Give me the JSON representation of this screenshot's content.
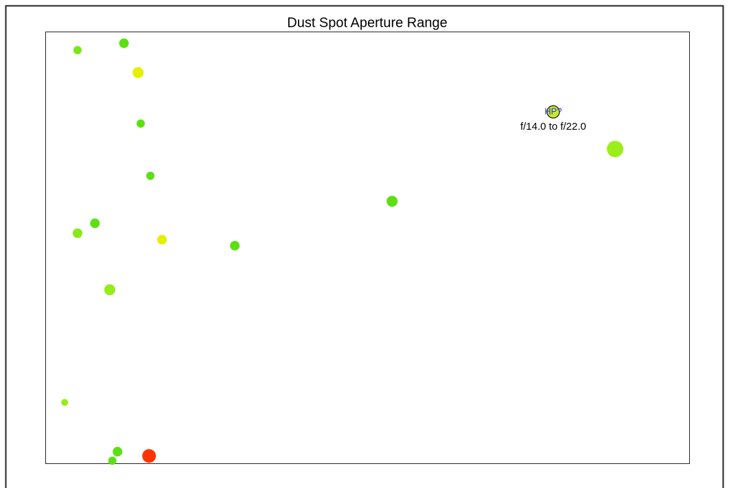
{
  "chart_data": {
    "type": "scatter",
    "title": "Dust Spot Aperture Range",
    "xlim": [
      0,
      100
    ],
    "ylim": [
      0,
      100
    ],
    "x": [
      5.0,
      12.2,
      14.4,
      14.8,
      16.3,
      53.8,
      88.4,
      7.7,
      5.0,
      18.1,
      29.4,
      10.0,
      3.0,
      11.2,
      10.4,
      16.1
    ],
    "y": [
      95.7,
      97.3,
      90.5,
      78.7,
      66.6,
      60.7,
      72.8,
      55.6,
      53.3,
      51.8,
      50.4,
      40.2,
      14.1,
      2.7,
      0.6,
      1.7
    ],
    "sizes": [
      6,
      7,
      8,
      6,
      6,
      8,
      12,
      7,
      7,
      7,
      7,
      8,
      5,
      7,
      6,
      10
    ],
    "colors": [
      "#77e81a",
      "#5ce014",
      "#e4f000",
      "#5ce014",
      "#5ce014",
      "#5ce014",
      "#9cee1a",
      "#5ce014",
      "#86ea1a",
      "#e4f000",
      "#5ce014",
      "#94ec1a",
      "#94ec1a",
      "#5ce014",
      "#5ce014",
      "#ff3300"
    ],
    "highlight": {
      "x": 78.8,
      "y": 81.4,
      "size": 9,
      "color": "#c8ea2a",
      "label": "HP?",
      "note": "f/14.0 to f/22.0"
    }
  }
}
